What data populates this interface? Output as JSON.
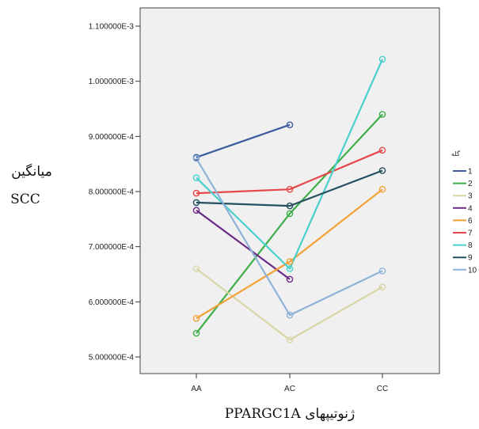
{
  "chart_data": {
    "type": "line",
    "xlabel": "ژنوتیپهای PPARGC1A",
    "ylabel_lines": [
      "میانگین",
      "SCC"
    ],
    "categories": [
      "AA",
      "AC",
      "CC"
    ],
    "ylim": [
      0.00048,
      0.00112
    ],
    "yticks": [
      0.0005,
      0.0006,
      0.0007,
      0.0008,
      0.0009,
      0.001,
      0.0011
    ],
    "ytick_labels": [
      "5.000000E-4",
      "6.000000E-4",
      "7.000000E-4",
      "8.000000E-4",
      "9.000000E-4",
      "1.000000E-3",
      "1.100000E-3"
    ],
    "grid": false,
    "legend_title": "گله",
    "legend_position": "right",
    "series": [
      {
        "name": "1",
        "color": "#3c5c9e",
        "values": [
          0.000862,
          0.000921,
          null
        ]
      },
      {
        "name": "2",
        "color": "#3fae4a",
        "values": [
          0.000543,
          0.00076,
          0.00094
        ]
      },
      {
        "name": "3",
        "color": "#d9d6a5",
        "values": [
          0.00066,
          0.000531,
          0.000627
        ]
      },
      {
        "name": "4",
        "color": "#6a2a86",
        "values": [
          0.000766,
          0.000641,
          null
        ]
      },
      {
        "name": "6",
        "color": "#f2a238",
        "values": [
          0.00057,
          0.000673,
          0.000804
        ]
      },
      {
        "name": "7",
        "color": "#e5474a",
        "values": [
          0.000797,
          0.000804,
          0.000875
        ]
      },
      {
        "name": "8",
        "color": "#49d0cc",
        "values": [
          0.000825,
          0.00066,
          0.00104
        ]
      },
      {
        "name": "9",
        "color": "#23505f",
        "values": [
          0.00078,
          0.000774,
          0.000838
        ]
      },
      {
        "name": "10",
        "color": "#8fb2d8",
        "values": [
          0.00086,
          0.000576,
          0.000656
        ]
      }
    ]
  }
}
